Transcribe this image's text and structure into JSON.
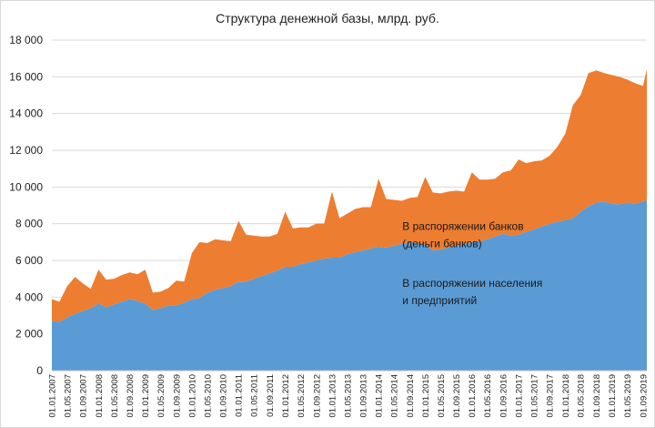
{
  "chart_data": {
    "type": "area",
    "stacked": true,
    "title": "Структура денежной базы, млрд. руб.",
    "xlabel": "",
    "ylabel": "",
    "ylim": [
      0,
      18000
    ],
    "yticks": [
      0,
      2000,
      4000,
      6000,
      8000,
      10000,
      12000,
      14000,
      16000,
      18000
    ],
    "ytick_labels": [
      "0",
      "2 000",
      "4 000",
      "6 000",
      "8 000",
      "10 000",
      "12 000",
      "14 000",
      "16 000",
      "18 000"
    ],
    "xticks": [
      "01.01.2007",
      "01.05.2007",
      "01.09.2007",
      "01.01.2008",
      "01.05.2008",
      "01.09.2008",
      "01.01.2009",
      "01.05.2009",
      "01.09.2009",
      "01.01.2010",
      "01.05.2010",
      "01.09.2010",
      "01.01.2011",
      "01.05.2011",
      "01.09.2011",
      "01.01.2012",
      "01.05.2012",
      "01.09.2012",
      "01.01.2013",
      "01.05.2013",
      "01.09.2013",
      "01.01.2014",
      "01.05.2014",
      "01.09.2014",
      "01.01.2015",
      "01.05.2015",
      "01.09.2015",
      "01.01.2016",
      "01.05.2016",
      "01.09.2016",
      "01.01.2017",
      "01.05.2017",
      "01.09.2017",
      "01.01.2018",
      "01.05.2018",
      "01.09.2018",
      "01.01.2019",
      "01.05.2019",
      "01.09.2019"
    ],
    "x": [
      "01.01.2007",
      "01.03.2007",
      "01.05.2007",
      "01.07.2007",
      "01.09.2007",
      "01.11.2007",
      "01.01.2008",
      "01.03.2008",
      "01.05.2008",
      "01.07.2008",
      "01.09.2008",
      "01.11.2008",
      "01.01.2009",
      "01.03.2009",
      "01.05.2009",
      "01.07.2009",
      "01.09.2009",
      "01.11.2009",
      "01.01.2010",
      "01.03.2010",
      "01.05.2010",
      "01.07.2010",
      "01.09.2010",
      "01.11.2010",
      "01.01.2011",
      "01.03.2011",
      "01.05.2011",
      "01.07.2011",
      "01.09.2011",
      "01.11.2011",
      "01.01.2012",
      "01.03.2012",
      "01.05.2012",
      "01.07.2012",
      "01.09.2012",
      "01.11.2012",
      "01.01.2013",
      "01.03.2013",
      "01.05.2013",
      "01.07.2013",
      "01.09.2013",
      "01.11.2013",
      "01.01.2014",
      "01.03.2014",
      "01.05.2014",
      "01.07.2014",
      "01.09.2014",
      "01.11.2014",
      "01.01.2015",
      "01.03.2015",
      "01.05.2015",
      "01.07.2015",
      "01.09.2015",
      "01.11.2015",
      "01.01.2016",
      "01.03.2016",
      "01.05.2016",
      "01.07.2016",
      "01.09.2016",
      "01.11.2016",
      "01.01.2017",
      "01.03.2017",
      "01.05.2017",
      "01.07.2017",
      "01.09.2017",
      "01.11.2017",
      "01.01.2018",
      "01.03.2018",
      "01.05.2018",
      "01.07.2018",
      "01.09.2018",
      "01.11.2018",
      "01.01.2019",
      "01.03.2019",
      "01.05.2019",
      "01.07.2019",
      "01.09.2019",
      "01.10.2019"
    ],
    "series": [
      {
        "name": "В распоряжении населения и предприятий",
        "color": "#5b9bd5",
        "values": [
          2700,
          2650,
          2900,
          3100,
          3250,
          3400,
          3650,
          3450,
          3600,
          3750,
          3900,
          3800,
          3650,
          3300,
          3400,
          3550,
          3550,
          3700,
          3900,
          3950,
          4250,
          4400,
          4500,
          4600,
          4850,
          4850,
          5000,
          5150,
          5300,
          5450,
          5650,
          5650,
          5800,
          5900,
          6000,
          6100,
          6150,
          6150,
          6350,
          6450,
          6550,
          6650,
          6750,
          6700,
          6800,
          6900,
          7000,
          6950,
          6850,
          6550,
          6600,
          6700,
          6800,
          6900,
          7000,
          7050,
          7150,
          7300,
          7450,
          7350,
          7400,
          7550,
          7700,
          7850,
          8000,
          8100,
          8200,
          8300,
          8650,
          8950,
          9150,
          9200,
          9100,
          9050,
          9150,
          9100,
          9200,
          9300
        ]
      },
      {
        "name": "В распоряжении банков (деньги банков)",
        "color": "#ed7d31",
        "values": [
          1200,
          1100,
          1700,
          2000,
          1500,
          1050,
          1850,
          1500,
          1400,
          1450,
          1450,
          1450,
          1850,
          950,
          900,
          950,
          1350,
          1150,
          2500,
          3050,
          2700,
          2750,
          2600,
          2450,
          3300,
          2550,
          2350,
          2150,
          2000,
          2000,
          3000,
          2100,
          2000,
          1900,
          2000,
          1900,
          3600,
          2150,
          2200,
          2350,
          2350,
          2250,
          3700,
          2650,
          2500,
          2350,
          2400,
          2500,
          3700,
          3150,
          3050,
          3050,
          3000,
          2850,
          3800,
          3350,
          3250,
          3150,
          3350,
          3550,
          4100,
          3750,
          3700,
          3600,
          3700,
          4100,
          4700,
          6150,
          6350,
          7250,
          7200,
          7000,
          7000,
          6950,
          6700,
          6550,
          6300,
          7100
        ]
      }
    ],
    "annotations": [
      {
        "lines": [
          "В распоряжении банков",
          "(деньги банков)"
        ],
        "series": 1,
        "x": "01.09.2014",
        "y": 7650
      },
      {
        "lines": [
          "В распоряжении населения",
          "и предприятий"
        ],
        "series": 0,
        "x": "01.09.2014",
        "y": 4550
      }
    ],
    "grid": {
      "y": true,
      "x": false
    },
    "legend": "none"
  }
}
